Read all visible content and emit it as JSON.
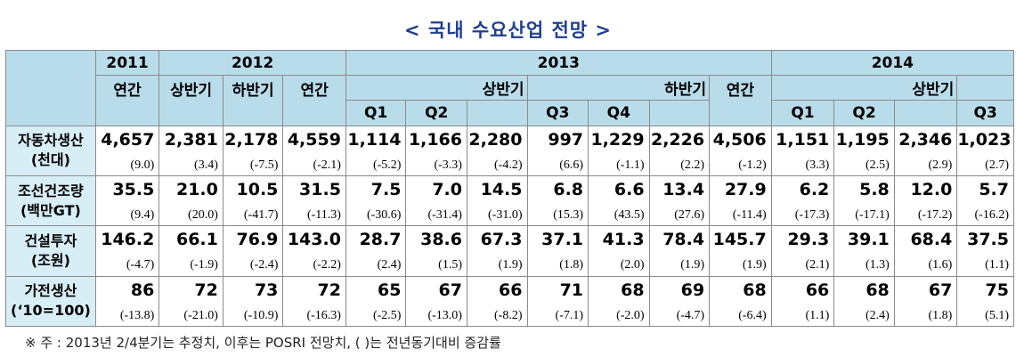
{
  "title": "< 국내 수요산업 전망 >",
  "header": {
    "y2011": "2011",
    "y2012": "2012",
    "y2013": "2013",
    "y2014": "2014",
    "annual_2011": "연간",
    "h1_2012": "상반기",
    "h2_2012": "하반기",
    "annual_2012": "연간",
    "h1_2013": "상반기",
    "h2_2013": "하반기",
    "annual_2013": "연간",
    "h1_2014": "상반기",
    "q1_2013": "Q1",
    "q2_2013": "Q2",
    "q3_2013": "Q3",
    "q4_2013": "Q4",
    "q1_2014": "Q1",
    "q2_2014": "Q2",
    "q3_2014": "Q3"
  },
  "rows": [
    {
      "name1": "자동차생산",
      "name2": "(천대)",
      "values": [
        "4,657",
        "2,381",
        "2,178",
        "4,559",
        "1,114",
        "1,166",
        "2,280",
        "997",
        "1,229",
        "2,226",
        "4,506",
        "1,151",
        "1,195",
        "2,346",
        "1,023"
      ],
      "changes": [
        "(9.0)",
        "(3.4)",
        "(-7.5)",
        "(-2.1)",
        "(-5.2)",
        "(-3.3)",
        "(-4.2)",
        "(6.6)",
        "(-1.1)",
        "(2.2)",
        "(-1.2)",
        "(3.3)",
        "(2.5)",
        "(2.9)",
        "(2.7)"
      ]
    },
    {
      "name1": "조선건조량",
      "name2": "(백만GT)",
      "values": [
        "35.5",
        "21.0",
        "10.5",
        "31.5",
        "7.5",
        "7.0",
        "14.5",
        "6.8",
        "6.6",
        "13.4",
        "27.9",
        "6.2",
        "5.8",
        "12.0",
        "5.7"
      ],
      "changes": [
        "(9.4)",
        "(20.0)",
        "(-41.7)",
        "(-11.3)",
        "(-30.6)",
        "(-31.4)",
        "(-31.0)",
        "(15.3)",
        "(43.5)",
        "(27.6)",
        "(-11.4)",
        "(-17.3)",
        "(-17.1)",
        "(-17.2)",
        "(-16.2)"
      ]
    },
    {
      "name1": "건설투자",
      "name2": "(조원)",
      "values": [
        "146.2",
        "66.1",
        "76.9",
        "143.0",
        "28.7",
        "38.6",
        "67.3",
        "37.1",
        "41.3",
        "78.4",
        "145.7",
        "29.3",
        "39.1",
        "68.4",
        "37.5"
      ],
      "changes": [
        "(-4.7)",
        "(-1.9)",
        "(-2.4)",
        "(-2.2)",
        "(2.4)",
        "(1.5)",
        "(1.9)",
        "(1.8)",
        "(2.0)",
        "(1.9)",
        "(1.9)",
        "(2.1)",
        "(1.3)",
        "(1.6)",
        "(1.1)"
      ]
    },
    {
      "name1": "가전생산",
      "name2": "(‘10=100)",
      "values": [
        "86",
        "72",
        "73",
        "72",
        "65",
        "67",
        "66",
        "71",
        "68",
        "69",
        "68",
        "66",
        "68",
        "67",
        "75"
      ],
      "changes": [
        "(-13.8)",
        "(-21.0)",
        "(-10.9)",
        "(-16.3)",
        "(-2.5)",
        "(-13.0)",
        "(-8.2)",
        "(-7.1)",
        "(-2.0)",
        "(-4.7)",
        "(-6.4)",
        "(1.1)",
        "(2.4)",
        "(1.8)",
        "(5.1)"
      ]
    }
  ],
  "note": "※ 주 : 2013년 2/4분기는 추정치, 이후는 POSRI 전망치, (   )는 전년동기대비 증감률"
}
